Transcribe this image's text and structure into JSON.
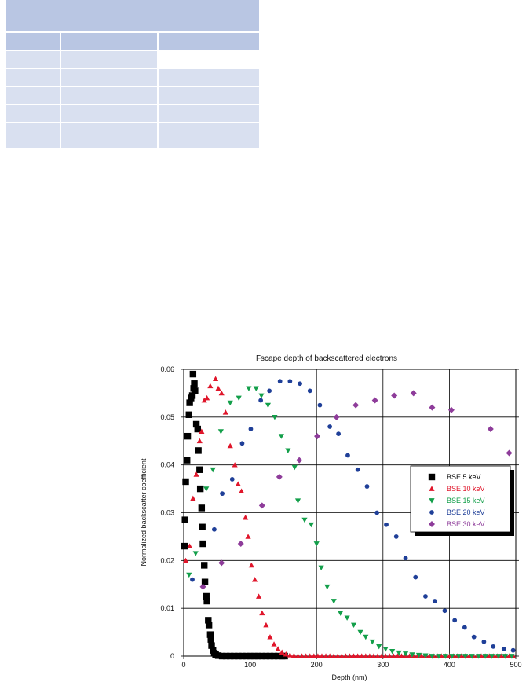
{
  "table": {
    "rows": [
      {
        "style": "hdr",
        "cells": [
          true,
          true,
          true
        ]
      },
      {
        "style": "row",
        "cells": [
          true,
          true,
          false
        ]
      },
      {
        "style": "row",
        "cells": [
          true,
          true,
          true
        ]
      },
      {
        "style": "row",
        "cells": [
          true,
          true,
          true
        ]
      },
      {
        "style": "row",
        "cells": [
          true,
          true,
          true
        ]
      },
      {
        "style": "row tall",
        "cells": [
          true,
          true,
          true
        ]
      }
    ]
  },
  "chart_data": {
    "type": "scatter",
    "title": "Fscape depth of backscattered electrons",
    "xlabel": "Depth (nm)",
    "ylabel": "Normalized backscatter coefficient",
    "xlim": [
      0,
      500
    ],
    "ylim": [
      0,
      0.06
    ],
    "xticks": [
      "0",
      "100",
      "200",
      "300",
      "400",
      "500"
    ],
    "yticks": [
      "0",
      "0.01",
      "0.02",
      "0.03",
      "0.04",
      "0.05",
      "0.06"
    ],
    "grid": true,
    "legend_position": "right",
    "series": [
      {
        "name": "BSE 5 keV",
        "color": "#000000",
        "marker": "square",
        "points": [
          [
            1,
            0.023
          ],
          [
            2,
            0.0285
          ],
          [
            3,
            0.0365
          ],
          [
            5,
            0.041
          ],
          [
            6,
            0.046
          ],
          [
            8,
            0.0505
          ],
          [
            9,
            0.053
          ],
          [
            11,
            0.054
          ],
          [
            13,
            0.0545
          ],
          [
            14,
            0.059
          ],
          [
            15,
            0.056
          ],
          [
            16,
            0.057
          ],
          [
            17,
            0.0555
          ],
          [
            19,
            0.0485
          ],
          [
            21,
            0.0475
          ],
          [
            22,
            0.043
          ],
          [
            24,
            0.039
          ],
          [
            25,
            0.035
          ],
          [
            27,
            0.031
          ],
          [
            28,
            0.027
          ],
          [
            29,
            0.0235
          ],
          [
            31,
            0.019
          ],
          [
            32,
            0.0155
          ],
          [
            34,
            0.0125
          ],
          [
            35,
            0.0115
          ],
          [
            37,
            0.0075
          ],
          [
            38,
            0.0065
          ],
          [
            40,
            0.0045
          ],
          [
            41,
            0.0035
          ],
          [
            42,
            0.0022
          ],
          [
            44,
            0.0012
          ],
          [
            46,
            0.0006
          ],
          [
            48,
            0.0003
          ],
          [
            52,
            0.0001
          ],
          [
            58,
            0
          ],
          [
            64,
            0
          ],
          [
            70,
            0
          ],
          [
            76,
            0
          ],
          [
            82,
            0
          ],
          [
            88,
            0
          ],
          [
            94,
            0
          ],
          [
            100,
            0
          ],
          [
            106,
            0
          ],
          [
            112,
            0
          ],
          [
            118,
            0
          ],
          [
            124,
            0
          ],
          [
            130,
            0
          ],
          [
            136,
            0
          ],
          [
            142,
            0
          ],
          [
            148,
            0
          ],
          [
            152,
            0
          ]
        ]
      },
      {
        "name": "BSE 10 keV",
        "color": "#e0162b",
        "marker": "triangle-up",
        "points": [
          [
            3,
            0.02
          ],
          [
            9,
            0.023
          ],
          [
            14,
            0.033
          ],
          [
            19,
            0.038
          ],
          [
            24,
            0.045
          ],
          [
            27,
            0.047
          ],
          [
            31,
            0.0535
          ],
          [
            35,
            0.054
          ],
          [
            40,
            0.0565
          ],
          [
            48,
            0.058
          ],
          [
            52,
            0.056
          ],
          [
            57,
            0.055
          ],
          [
            63,
            0.051
          ],
          [
            70,
            0.044
          ],
          [
            77,
            0.04
          ],
          [
            82,
            0.036
          ],
          [
            87,
            0.0345
          ],
          [
            93,
            0.029
          ],
          [
            97,
            0.025
          ],
          [
            102,
            0.019
          ],
          [
            107,
            0.016
          ],
          [
            113,
            0.0125
          ],
          [
            118,
            0.009
          ],
          [
            124,
            0.0065
          ],
          [
            130,
            0.004
          ],
          [
            136,
            0.0025
          ],
          [
            142,
            0.0015
          ],
          [
            148,
            0.0008
          ],
          [
            154,
            0.0004
          ],
          [
            160,
            0.0002
          ],
          [
            166,
            0.0001
          ],
          [
            172,
            0
          ],
          [
            178,
            0
          ],
          [
            184,
            0
          ],
          [
            190,
            0
          ],
          [
            196,
            0
          ],
          [
            202,
            0
          ],
          [
            208,
            0
          ],
          [
            214,
            0
          ],
          [
            220,
            0
          ],
          [
            226,
            0
          ],
          [
            232,
            0
          ],
          [
            238,
            0
          ],
          [
            244,
            0
          ],
          [
            250,
            0
          ],
          [
            256,
            0
          ],
          [
            262,
            0
          ],
          [
            268,
            0
          ],
          [
            274,
            0
          ],
          [
            280,
            0
          ],
          [
            286,
            0
          ],
          [
            292,
            0
          ],
          [
            298,
            0
          ],
          [
            304,
            0
          ],
          [
            310,
            0
          ],
          [
            316,
            0
          ],
          [
            322,
            0
          ],
          [
            328,
            0
          ],
          [
            334,
            0
          ],
          [
            340,
            0
          ],
          [
            346,
            0
          ],
          [
            352,
            0
          ],
          [
            358,
            0
          ],
          [
            364,
            0
          ],
          [
            370,
            0
          ],
          [
            376,
            0
          ],
          [
            382,
            0
          ],
          [
            388,
            0
          ],
          [
            394,
            0
          ],
          [
            400,
            0
          ],
          [
            406,
            0
          ],
          [
            412,
            0
          ],
          [
            418,
            0
          ],
          [
            424,
            0
          ],
          [
            430,
            0
          ],
          [
            436,
            0
          ],
          [
            442,
            0
          ],
          [
            448,
            0
          ],
          [
            454,
            0
          ],
          [
            460,
            0
          ],
          [
            466,
            0
          ],
          [
            472,
            0
          ],
          [
            478,
            0
          ],
          [
            484,
            0
          ],
          [
            490,
            0
          ],
          [
            496,
            0
          ]
        ]
      },
      {
        "name": "BSE 15 keV",
        "color": "#139f4a",
        "marker": "triangle-down",
        "points": [
          [
            8,
            0.017
          ],
          [
            18,
            0.0215
          ],
          [
            34,
            0.035
          ],
          [
            44,
            0.039
          ],
          [
            56,
            0.047
          ],
          [
            70,
            0.053
          ],
          [
            83,
            0.054
          ],
          [
            98,
            0.056
          ],
          [
            109,
            0.056
          ],
          [
            117,
            0.0545
          ],
          [
            127,
            0.0525
          ],
          [
            137,
            0.05
          ],
          [
            147,
            0.046
          ],
          [
            157,
            0.043
          ],
          [
            167,
            0.0395
          ],
          [
            172,
            0.0325
          ],
          [
            182,
            0.0285
          ],
          [
            192,
            0.0275
          ],
          [
            200,
            0.0235
          ],
          [
            207,
            0.0185
          ],
          [
            216,
            0.0145
          ],
          [
            226,
            0.0115
          ],
          [
            236,
            0.009
          ],
          [
            246,
            0.008
          ],
          [
            256,
            0.0065
          ],
          [
            266,
            0.005
          ],
          [
            274,
            0.004
          ],
          [
            284,
            0.003
          ],
          [
            294,
            0.002
          ],
          [
            304,
            0.0015
          ],
          [
            314,
            0.001
          ],
          [
            324,
            0.0007
          ],
          [
            334,
            0.0005
          ],
          [
            344,
            0.0003
          ],
          [
            354,
            0.0002
          ],
          [
            364,
            0.0001
          ],
          [
            374,
            0
          ],
          [
            384,
            0
          ],
          [
            394,
            0
          ],
          [
            404,
            0
          ],
          [
            414,
            0
          ],
          [
            424,
            0
          ],
          [
            434,
            0
          ],
          [
            444,
            0
          ],
          [
            454,
            0
          ],
          [
            464,
            0
          ],
          [
            474,
            0
          ],
          [
            484,
            0
          ],
          [
            494,
            0
          ]
        ]
      },
      {
        "name": "BSE 20 keV",
        "color": "#1f3f98",
        "marker": "circle",
        "points": [
          [
            13,
            0.016
          ],
          [
            46,
            0.0265
          ],
          [
            58,
            0.034
          ],
          [
            73,
            0.037
          ],
          [
            88,
            0.0445
          ],
          [
            101,
            0.0475
          ],
          [
            116,
            0.0535
          ],
          [
            129,
            0.0555
          ],
          [
            145,
            0.0575
          ],
          [
            160,
            0.0575
          ],
          [
            175,
            0.057
          ],
          [
            190,
            0.0555
          ],
          [
            205,
            0.0525
          ],
          [
            220,
            0.048
          ],
          [
            233,
            0.0465
          ],
          [
            247,
            0.042
          ],
          [
            262,
            0.039
          ],
          [
            276,
            0.0355
          ],
          [
            291,
            0.03
          ],
          [
            305,
            0.0275
          ],
          [
            320,
            0.025
          ],
          [
            334,
            0.0205
          ],
          [
            349,
            0.0165
          ],
          [
            364,
            0.0125
          ],
          [
            378,
            0.0115
          ],
          [
            393,
            0.0095
          ],
          [
            408,
            0.0075
          ],
          [
            423,
            0.006
          ],
          [
            437,
            0.004
          ],
          [
            452,
            0.003
          ],
          [
            466,
            0.002
          ],
          [
            482,
            0.0015
          ],
          [
            496,
            0.0012
          ]
        ]
      },
      {
        "name": "BSE 30 keV",
        "color": "#8e3c9a",
        "marker": "diamond",
        "points": [
          [
            29,
            0.0145
          ],
          [
            57,
            0.0195
          ],
          [
            86,
            0.0235
          ],
          [
            118,
            0.0315
          ],
          [
            144,
            0.0375
          ],
          [
            174,
            0.041
          ],
          [
            201,
            0.046
          ],
          [
            230,
            0.05
          ],
          [
            259,
            0.0525
          ],
          [
            288,
            0.0535
          ],
          [
            317,
            0.0545
          ],
          [
            346,
            0.055
          ],
          [
            374,
            0.052
          ],
          [
            403,
            0.0515
          ],
          [
            462,
            0.0475
          ],
          [
            490,
            0.0425
          ]
        ]
      }
    ]
  }
}
